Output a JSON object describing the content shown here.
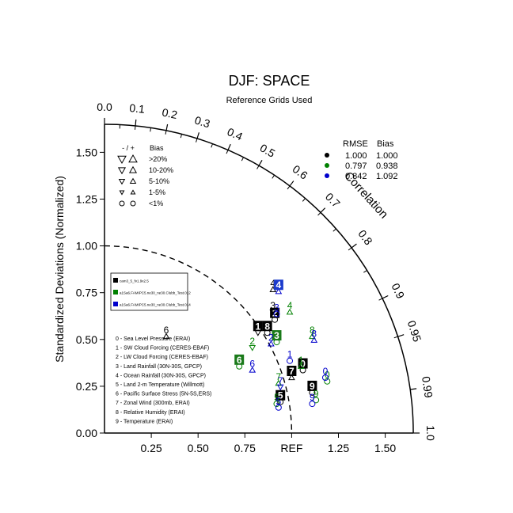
{
  "chart_data": {
    "type": "scatter",
    "title": "DJF: SPACE",
    "subtitle": "Reference Grids Used",
    "ylabel": "Standardized Deviations (Normalized)",
    "arc_label": "Correlation",
    "ref_label": "REF",
    "radius_max": 1.65,
    "std_ticks": [
      "0.25",
      "0.50",
      "0.75",
      "1.00",
      "1.25",
      "1.50"
    ],
    "y_ticks": [
      "0.00",
      "0.25",
      "0.50",
      "0.75",
      "1.00",
      "1.25",
      "1.50"
    ],
    "corr_ticks": [
      "0.0",
      "0.1",
      "0.2",
      "0.3",
      "0.4",
      "0.5",
      "0.6",
      "0.7",
      "0.8",
      "0.9",
      "0.95",
      "0.99",
      "1.0"
    ],
    "bias_legend": {
      "header_sign": "- / +",
      "header_bias": "Bias",
      "rows": [
        ">20%",
        "10-20%",
        "5-10%",
        "1-5%",
        "<1%"
      ]
    },
    "stats_legend": {
      "rmse_header": "RMSE",
      "bias_header": "Bias",
      "rows": [
        {
          "rmse": "1.000",
          "bias": "1.000",
          "color": "#000000"
        },
        {
          "rmse": "0.797",
          "bias": "0.938",
          "color": "#008000"
        },
        {
          "rmse": "0.842",
          "bias": "1.092",
          "color": "#0000cc"
        }
      ]
    },
    "series": [
      {
        "name": "cam3_5_fv1.9x2.5",
        "color": "#000000",
        "fill": "#000000"
      },
      {
        "name": "a1Sa6.FAMIPC5.ne30_ne30.Clubb_Test.012",
        "color": "#008000",
        "fill": "#1a7a1a"
      },
      {
        "name": "a1Sa6.FAMIPC5.ne30_ne30.Clubb_Test.014",
        "color": "#0000cc",
        "fill": "#1a3acc"
      }
    ],
    "variables": [
      "0 - Sea Level Pressure (ERAI)",
      "1 - SW Cloud Forcing (CERES-EBAF)",
      "2 - LW Cloud Forcing (CERES-EBAF)",
      "3 - Land Rainfall (30N-30S, GPCP)",
      "4 - Ocean Rainfall (30N-30S, GPCP)",
      "5 - Land 2-m Temperature (Willmott)",
      "6 - Pacific Surface Stress (5N-5S,ERS)",
      "7 - Zonal Wind (300mb, ERAI)",
      "8 - Relative Humidity (ERAI)",
      "9 - Temperature (ERAI)"
    ],
    "points": [
      {
        "series": 0,
        "var": "0",
        "x": 1.06,
        "y": 0.37,
        "box": true,
        "sym": "circle"
      },
      {
        "series": 0,
        "var": "1",
        "x": 0.82,
        "y": 0.57,
        "box": true,
        "sym": "tri-down"
      },
      {
        "series": 0,
        "var": "2",
        "x": 0.91,
        "y": 0.64,
        "box": true,
        "sym": "circle"
      },
      {
        "series": 0,
        "var": "3",
        "x": 0.9,
        "y": 0.68,
        "box": false,
        "sym": "tri-down"
      },
      {
        "series": 0,
        "var": "4",
        "x": 0.9,
        "y": 0.8,
        "box": false,
        "sym": "tri-up"
      },
      {
        "series": 0,
        "var": "5",
        "x": 0.94,
        "y": 0.2,
        "box": true,
        "sym": "circle"
      },
      {
        "series": 0,
        "var": "6",
        "x": 0.33,
        "y": 0.55,
        "box": false,
        "sym": "tri-up"
      },
      {
        "series": 0,
        "var": "7",
        "x": 1.0,
        "y": 0.33,
        "box": true,
        "sym": "tri-up"
      },
      {
        "series": 0,
        "var": "8",
        "x": 0.87,
        "y": 0.57,
        "box": true,
        "sym": "circle"
      },
      {
        "series": 0,
        "var": "9",
        "x": 1.11,
        "y": 0.25,
        "box": true,
        "sym": "circle"
      },
      {
        "series": 1,
        "var": "0",
        "x": 1.19,
        "y": 0.31,
        "box": false,
        "sym": "circle"
      },
      {
        "series": 1,
        "var": "1",
        "x": 1.05,
        "y": 0.39,
        "box": false,
        "sym": "tri-up"
      },
      {
        "series": 1,
        "var": "2",
        "x": 0.79,
        "y": 0.49,
        "box": false,
        "sym": "tri-down"
      },
      {
        "series": 1,
        "var": "3",
        "x": 0.92,
        "y": 0.52,
        "box": true,
        "sym": "circle"
      },
      {
        "series": 1,
        "var": "4",
        "x": 0.99,
        "y": 0.68,
        "box": false,
        "sym": "tri-up"
      },
      {
        "series": 1,
        "var": "5",
        "x": 0.92,
        "y": 0.19,
        "box": false,
        "sym": "circle"
      },
      {
        "series": 1,
        "var": "6",
        "x": 0.72,
        "y": 0.39,
        "box": true,
        "sym": "circle"
      },
      {
        "series": 1,
        "var": "7",
        "x": 0.93,
        "y": 0.3,
        "box": false,
        "sym": "tri-up"
      },
      {
        "series": 1,
        "var": "8",
        "x": 1.11,
        "y": 0.55,
        "box": false,
        "sym": "tri-up"
      },
      {
        "series": 1,
        "var": "9",
        "x": 1.13,
        "y": 0.21,
        "box": false,
        "sym": "circle"
      },
      {
        "series": 2,
        "var": "0",
        "x": 1.18,
        "y": 0.33,
        "box": false,
        "sym": "circle"
      },
      {
        "series": 2,
        "var": "1",
        "x": 0.99,
        "y": 0.42,
        "box": false,
        "sym": "circle"
      },
      {
        "series": 2,
        "var": "2",
        "x": 0.89,
        "y": 0.51,
        "box": false,
        "sym": "tri-up"
      },
      {
        "series": 2,
        "var": "3",
        "x": 0.92,
        "y": 0.67,
        "box": false,
        "sym": "circle"
      },
      {
        "series": 2,
        "var": "4",
        "x": 0.93,
        "y": 0.79,
        "box": true,
        "sym": "tri-up"
      },
      {
        "series": 2,
        "var": "5",
        "x": 0.93,
        "y": 0.17,
        "box": false,
        "sym": "circle"
      },
      {
        "series": 2,
        "var": "6",
        "x": 0.79,
        "y": 0.37,
        "box": false,
        "sym": "tri-up"
      },
      {
        "series": 2,
        "var": "7",
        "x": 0.94,
        "y": 0.28,
        "box": false,
        "sym": "tri-down"
      },
      {
        "series": 2,
        "var": "8",
        "x": 1.12,
        "y": 0.53,
        "box": false,
        "sym": "tri-up"
      },
      {
        "series": 2,
        "var": "9",
        "x": 1.11,
        "y": 0.19,
        "box": false,
        "sym": "circle"
      }
    ]
  }
}
